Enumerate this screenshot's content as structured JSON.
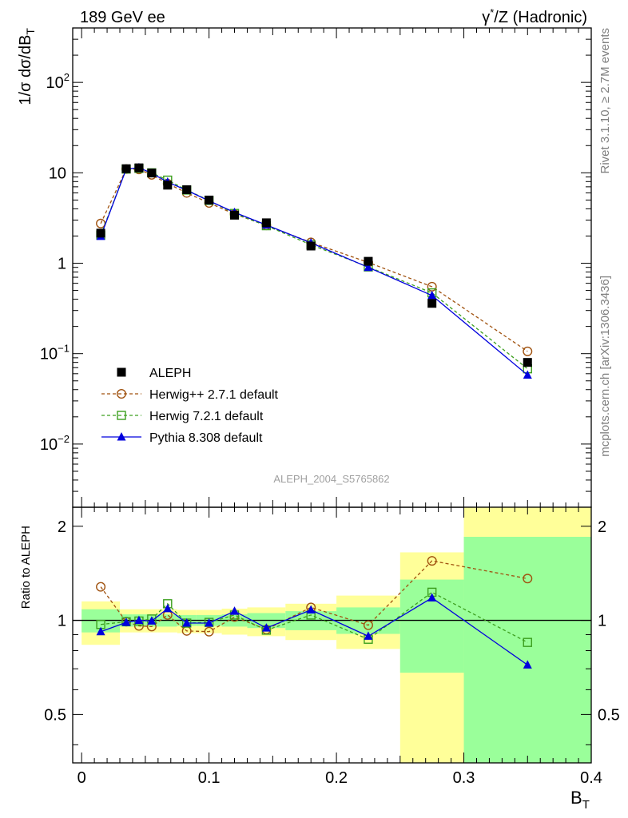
{
  "header": {
    "left": "189 GeV ee",
    "right_prefix": "γ",
    "right_sup": "*",
    "right_suffix": "/Z (Hadronic)"
  },
  "side_labels": {
    "rivet": "Rivet 3.1.10, ≥ 2.7M events",
    "mcplots": "mcplots.cern.ch [arXiv:1306.3436]"
  },
  "analysis_id": "ALEPH_2004_S5765862",
  "colors": {
    "data": "#000000",
    "herwigpp": "#a0520f",
    "herwig7": "#3c9f1e",
    "pythia": "#0000dd",
    "band_inner": "#9aff9a",
    "band_outer": "#ffff99"
  },
  "chart_data": [
    {
      "type": "scatter",
      "panel": "main",
      "ylabel_main": "1/σ  dσ/dB",
      "ylabel_sub": "T",
      "yscale": "log",
      "ylim": [
        0.002,
        400
      ],
      "xlim": [
        -0.007,
        0.4
      ],
      "y_ticks": [
        {
          "value": 0.01,
          "base": "10",
          "exp": "−2"
        },
        {
          "value": 0.1,
          "base": "10",
          "exp": "−1"
        },
        {
          "value": 1,
          "base": "1",
          "exp": ""
        },
        {
          "value": 10,
          "base": "10",
          "exp": ""
        },
        {
          "value": 100,
          "base": "10",
          "exp": "2"
        }
      ],
      "x": [
        0.015,
        0.035,
        0.045,
        0.055,
        0.0675,
        0.0825,
        0.1,
        0.12,
        0.145,
        0.18,
        0.225,
        0.275,
        0.35
      ],
      "x_edges": [
        0.0,
        0.03,
        0.04,
        0.05,
        0.06,
        0.075,
        0.09,
        0.11,
        0.13,
        0.16,
        0.2,
        0.25,
        0.3,
        0.4
      ],
      "legend_position": "lower-left",
      "series": [
        {
          "name": "ALEPH",
          "key": "data",
          "marker": "square-filled",
          "line": "none",
          "values": [
            2.15,
            11.1,
            11.35,
            9.95,
            7.3,
            6.5,
            5.0,
            3.4,
            2.8,
            1.55,
            1.05,
            0.36,
            0.08
          ]
        },
        {
          "name": "Herwig++ 2.7.1 default",
          "key": "herwigpp",
          "marker": "circle-open",
          "line": "dashed",
          "values": [
            2.75,
            11.0,
            10.9,
            9.5,
            7.6,
            6.0,
            4.65,
            3.5,
            2.62,
            1.7,
            1.02,
            0.55,
            0.106
          ]
        },
        {
          "name": "Herwig 7.2.1 default",
          "key": "herwig7",
          "marker": "square-open",
          "line": "dashed",
          "values": [
            2.05,
            11.0,
            11.2,
            10.0,
            8.3,
            6.45,
            4.95,
            3.55,
            2.6,
            1.6,
            0.91,
            0.47,
            0.068
          ]
        },
        {
          "name": "Pythia 8.308 default",
          "key": "pythia",
          "marker": "triangle-filled",
          "line": "solid",
          "values": [
            1.98,
            11.0,
            11.4,
            9.9,
            7.9,
            6.4,
            4.9,
            3.65,
            2.65,
            1.68,
            0.9,
            0.44,
            0.058
          ]
        }
      ]
    },
    {
      "type": "line",
      "panel": "ratio",
      "ylabel": "Ratio to ALEPH",
      "xlabel_main": "B",
      "xlabel_sub": "T",
      "ylim": [
        0.35,
        2.3
      ],
      "xlim": [
        -0.007,
        0.4
      ],
      "x_ticks": [
        "0",
        "0.1",
        "0.2",
        "0.3",
        "0.4"
      ],
      "y_ticks": [
        "0.5",
        "1",
        "2"
      ],
      "x": [
        0.015,
        0.035,
        0.045,
        0.055,
        0.0675,
        0.0825,
        0.1,
        0.12,
        0.145,
        0.18,
        0.225,
        0.275,
        0.35
      ],
      "bands": {
        "x_edges": [
          0.0,
          0.03,
          0.04,
          0.05,
          0.06,
          0.075,
          0.09,
          0.11,
          0.13,
          0.16,
          0.2,
          0.25,
          0.3,
          0.4
        ],
        "inner_low": [
          0.915,
          0.955,
          0.955,
          0.955,
          0.955,
          0.96,
          0.96,
          0.955,
          0.945,
          0.93,
          0.905,
          0.68,
          0.35
        ],
        "inner_high": [
          1.085,
          1.045,
          1.045,
          1.045,
          1.045,
          1.04,
          1.04,
          1.045,
          1.055,
          1.07,
          1.1,
          1.35,
          1.85
        ],
        "outer_low": [
          0.835,
          0.915,
          0.915,
          0.915,
          0.915,
          0.91,
          0.91,
          0.9,
          0.89,
          0.865,
          0.81,
          0.35,
          0.35
        ],
        "outer_high": [
          1.15,
          1.085,
          1.085,
          1.085,
          1.085,
          1.08,
          1.08,
          1.09,
          1.1,
          1.13,
          1.2,
          1.65,
          2.3
        ]
      },
      "series": [
        {
          "key": "herwigpp",
          "marker": "circle-open",
          "line": "dashed",
          "values": [
            1.28,
            0.99,
            0.96,
            0.955,
            1.04,
            0.925,
            0.92,
            1.025,
            0.935,
            1.1,
            0.965,
            1.55,
            1.36
          ]
        },
        {
          "key": "herwig7",
          "marker": "square-open",
          "line": "dashed",
          "values": [
            0.97,
            0.99,
            0.995,
            1.01,
            1.13,
            0.98,
            0.985,
            1.04,
            0.93,
            1.04,
            0.87,
            1.23,
            0.85
          ]
        },
        {
          "key": "pythia",
          "marker": "triangle-filled",
          "line": "solid",
          "values": [
            0.92,
            0.985,
            1.0,
            0.995,
            1.09,
            0.98,
            0.98,
            1.07,
            0.945,
            1.08,
            0.89,
            1.18,
            0.72
          ]
        }
      ]
    }
  ]
}
